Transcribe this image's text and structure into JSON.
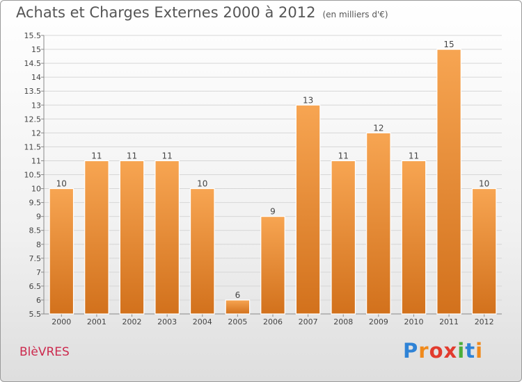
{
  "header": {
    "title": "Achats et Charges Externes 2000 à 2012",
    "unit": "(en milliers d'€)"
  },
  "footer": {
    "place": "BlèVRES",
    "brand_letters": [
      {
        "char": "P",
        "color": "#2f83d6"
      },
      {
        "char": "r",
        "color": "#f08a1c"
      },
      {
        "char": "o",
        "color": "#e23b2e"
      },
      {
        "char": "x",
        "color": "#e23b2e"
      },
      {
        "char": "i",
        "color": "#4cae3a"
      },
      {
        "char": "t",
        "color": "#2f83d6"
      },
      {
        "char": "i",
        "color": "#f08a1c"
      }
    ]
  },
  "chart_data": {
    "type": "bar",
    "title": "Achats et Charges Externes 2000 à 2012",
    "subtitle": "(en milliers d'€)",
    "xlabel": "",
    "ylabel": "",
    "categories": [
      "2000",
      "2001",
      "2002",
      "2003",
      "2004",
      "2005",
      "2006",
      "2007",
      "2008",
      "2009",
      "2010",
      "2011",
      "2012"
    ],
    "values": [
      10,
      11,
      11,
      11,
      10,
      6,
      9,
      13,
      11,
      12,
      11,
      15,
      10
    ],
    "value_labels": [
      "10",
      "11",
      "11",
      "11",
      "10",
      "6",
      "9",
      "13",
      "11",
      "12",
      "11",
      "15",
      "10"
    ],
    "ylim": [
      5.5,
      15.5
    ],
    "y_ticks": [
      "5.5",
      "6",
      "6.5",
      "7",
      "7.5",
      "8",
      "8.5",
      "9",
      "9.5",
      "10",
      "10.5",
      "11",
      "11.5",
      "12",
      "12.5",
      "13",
      "13.5",
      "14",
      "14.5",
      "15",
      "15.5"
    ],
    "grid": true,
    "legend": "none",
    "bar_color_top": "#f7a552",
    "bar_color_bottom": "#d2711c"
  }
}
